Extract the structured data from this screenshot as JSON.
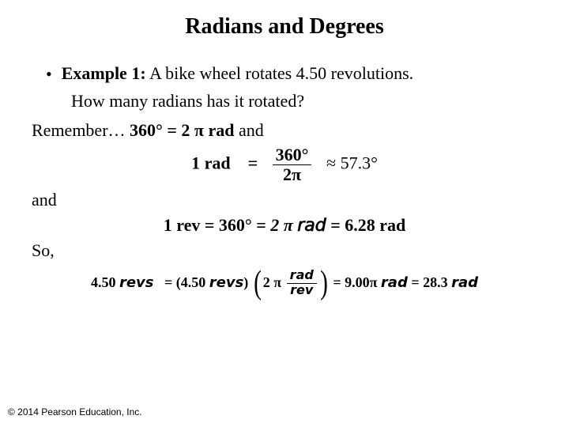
{
  "title": "Radians and Degrees",
  "example": {
    "label": "Example 1:",
    "problem_part1": "A bike wheel rotates 4.50 revolutions.",
    "problem_part2": "How many radians has it rotated?"
  },
  "remember": {
    "prefix": "Remember…",
    "eq1_lhs": "360°",
    "eq1_eq": "=",
    "eq1_rhs": "2 π rad",
    "and": "and"
  },
  "rad_def": {
    "lhs": "1 rad",
    "eq": "=",
    "frac_num": "360°",
    "frac_den": "2π",
    "approx": "≈",
    "rhs": "57.3°"
  },
  "and2": "and",
  "rev_def": {
    "lhs": "1 rev =",
    "mid": "360°",
    "eq": "=",
    "pi": "2 π 𝘳𝘢𝘥",
    "eq2": "= 6.28 rad"
  },
  "so": "So,",
  "solution": {
    "lhs": "4.50 𝙧𝙚𝙫𝙨",
    "eq1": "= (4.50 𝙧𝙚𝙫𝙨)",
    "frac_coef": "2 π",
    "frac_num": "𝙧𝙖𝙙",
    "frac_den": "𝙧𝙚𝙫",
    "eq2": "= 9.00π 𝙧𝙖𝙙 = 28.3 𝙧𝙖𝙙"
  },
  "copyright": "© 2014 Pearson Education, Inc."
}
